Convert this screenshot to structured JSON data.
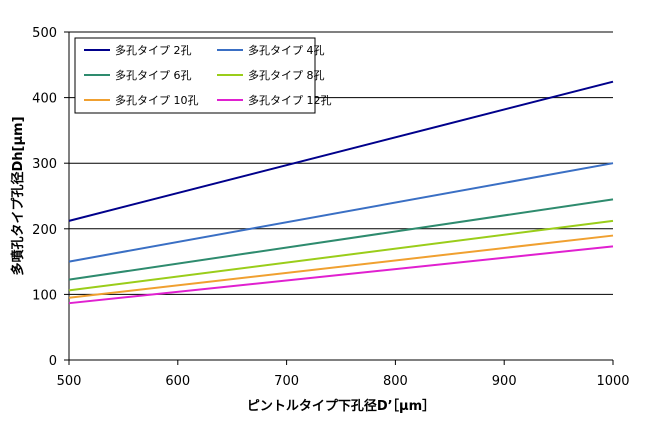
{
  "chart_data": {
    "type": "line",
    "xlabel": "ピントルタイプ下孔径D’［μm］",
    "ylabel": "多噴孔タイプ孔径Dh[μm]",
    "xlim": [
      500,
      1000
    ],
    "ylim": [
      0,
      500
    ],
    "xticks": [
      "500",
      "600",
      "700",
      "800",
      "900",
      "1000"
    ],
    "yticks": [
      "0",
      "100",
      "200",
      "300",
      "400",
      "500"
    ],
    "grid": "horizontal",
    "legend_position": "top-left",
    "x": [
      500,
      1000
    ],
    "series": [
      {
        "name": "多孔タイプ 2孔",
        "color": "#00008b",
        "values": [
          212.1,
          424.3
        ]
      },
      {
        "name": "多孔タイプ 4孔",
        "color": "#3a6fc4",
        "values": [
          150,
          300
        ]
      },
      {
        "name": "多孔タイプ 6孔",
        "color": "#2e8b6e",
        "values": [
          122.5,
          244.9
        ]
      },
      {
        "name": "多孔タイプ 8孔",
        "color": "#9acd1a",
        "values": [
          106.1,
          212.1
        ]
      },
      {
        "name": "多孔タイプ 10孔",
        "color": "#f0a030",
        "values": [
          94.9,
          189.7
        ]
      },
      {
        "name": "多孔タイプ 12孔",
        "color": "#e020d0",
        "values": [
          86.6,
          173.2
        ]
      }
    ]
  }
}
